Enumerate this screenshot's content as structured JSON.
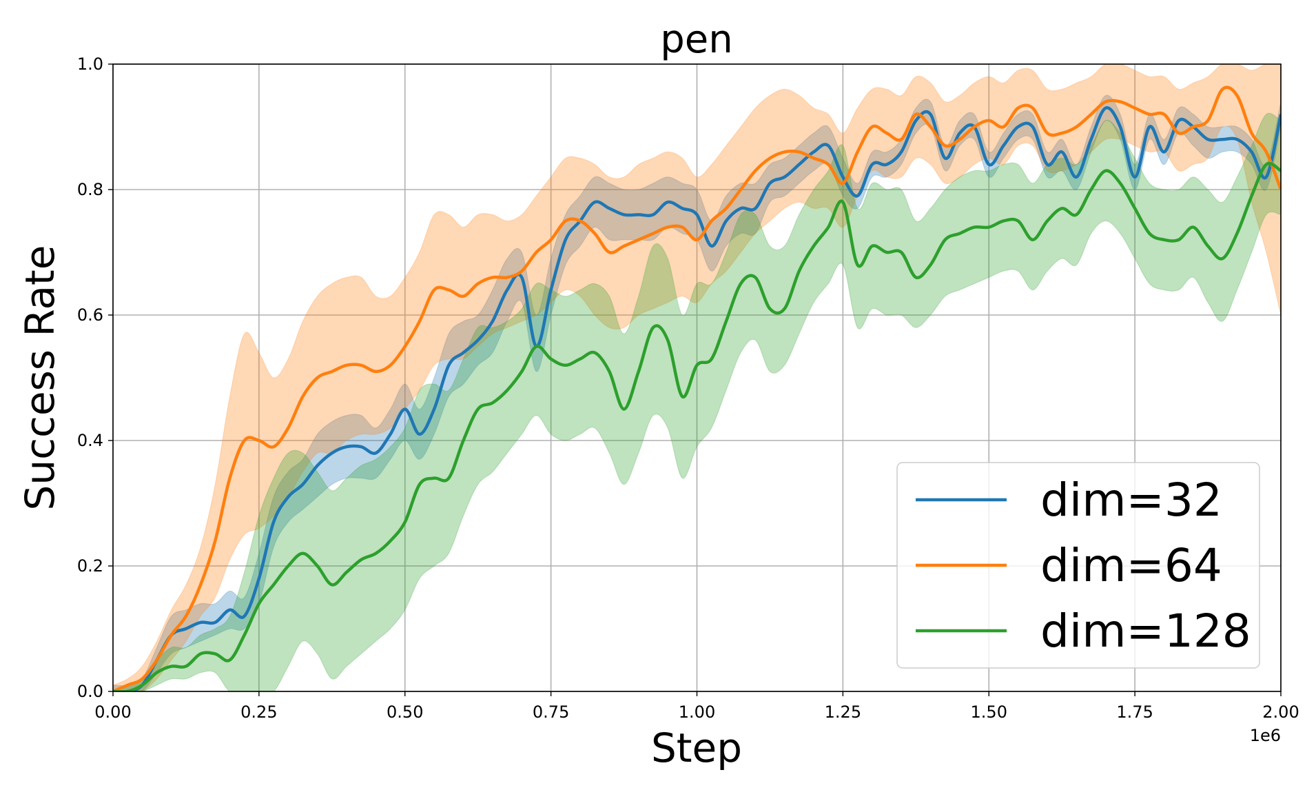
{
  "chart_data": {
    "type": "line",
    "title": "pen",
    "xlabel": "Step",
    "ylabel": "Success Rate",
    "x_offset_label": "1e6",
    "xlim": [
      0,
      2.0
    ],
    "ylim": [
      0,
      1.0
    ],
    "xticks": [
      "0.00",
      "0.25",
      "0.50",
      "0.75",
      "1.00",
      "1.25",
      "1.50",
      "1.75",
      "2.00"
    ],
    "yticks": [
      "0.0",
      "0.2",
      "0.4",
      "0.6",
      "0.8",
      "1.0"
    ],
    "grid": true,
    "legend_position": "lower-right",
    "x": [
      0.0,
      0.025,
      0.05,
      0.075,
      0.1,
      0.125,
      0.15,
      0.175,
      0.2,
      0.225,
      0.25,
      0.275,
      0.3,
      0.325,
      0.35,
      0.375,
      0.4,
      0.425,
      0.45,
      0.475,
      0.5,
      0.525,
      0.55,
      0.575,
      0.6,
      0.625,
      0.65,
      0.675,
      0.7,
      0.725,
      0.75,
      0.775,
      0.8,
      0.825,
      0.85,
      0.875,
      0.9,
      0.925,
      0.95,
      0.975,
      1.0,
      1.025,
      1.05,
      1.075,
      1.1,
      1.125,
      1.15,
      1.175,
      1.2,
      1.225,
      1.25,
      1.275,
      1.3,
      1.325,
      1.35,
      1.375,
      1.4,
      1.425,
      1.45,
      1.475,
      1.5,
      1.525,
      1.55,
      1.575,
      1.6,
      1.625,
      1.65,
      1.675,
      1.7,
      1.725,
      1.75,
      1.775,
      1.8,
      1.825,
      1.85,
      1.875,
      1.9,
      1.925,
      1.95,
      1.975,
      2.0
    ],
    "series": [
      {
        "name": "dim=32",
        "color": "#1f77b4",
        "mean": [
          0.0,
          0.0,
          0.01,
          0.05,
          0.09,
          0.1,
          0.11,
          0.11,
          0.13,
          0.12,
          0.18,
          0.27,
          0.31,
          0.33,
          0.36,
          0.38,
          0.39,
          0.39,
          0.38,
          0.41,
          0.45,
          0.41,
          0.45,
          0.52,
          0.54,
          0.56,
          0.59,
          0.64,
          0.66,
          0.55,
          0.64,
          0.72,
          0.75,
          0.78,
          0.77,
          0.76,
          0.76,
          0.76,
          0.78,
          0.77,
          0.76,
          0.71,
          0.75,
          0.77,
          0.77,
          0.81,
          0.82,
          0.84,
          0.86,
          0.87,
          0.82,
          0.79,
          0.84,
          0.84,
          0.86,
          0.91,
          0.92,
          0.85,
          0.89,
          0.9,
          0.84,
          0.87,
          0.9,
          0.9,
          0.84,
          0.86,
          0.82,
          0.88,
          0.93,
          0.9,
          0.82,
          0.9,
          0.86,
          0.91,
          0.9,
          0.88,
          0.88,
          0.88,
          0.86,
          0.82,
          0.92
        ],
        "lower": [
          0.0,
          0.0,
          0.0,
          0.03,
          0.06,
          0.07,
          0.08,
          0.09,
          0.1,
          0.1,
          0.14,
          0.23,
          0.27,
          0.29,
          0.31,
          0.33,
          0.34,
          0.34,
          0.34,
          0.37,
          0.4,
          0.37,
          0.41,
          0.47,
          0.49,
          0.52,
          0.54,
          0.59,
          0.62,
          0.51,
          0.6,
          0.68,
          0.71,
          0.74,
          0.72,
          0.72,
          0.72,
          0.72,
          0.74,
          0.73,
          0.72,
          0.67,
          0.71,
          0.73,
          0.73,
          0.78,
          0.79,
          0.81,
          0.83,
          0.84,
          0.79,
          0.77,
          0.82,
          0.82,
          0.84,
          0.89,
          0.9,
          0.83,
          0.87,
          0.88,
          0.82,
          0.85,
          0.88,
          0.88,
          0.82,
          0.83,
          0.8,
          0.86,
          0.91,
          0.88,
          0.8,
          0.88,
          0.84,
          0.89,
          0.87,
          0.85,
          0.86,
          0.86,
          0.84,
          0.8,
          0.9
        ],
        "upper": [
          0.01,
          0.01,
          0.02,
          0.07,
          0.12,
          0.13,
          0.14,
          0.14,
          0.16,
          0.15,
          0.22,
          0.31,
          0.35,
          0.37,
          0.41,
          0.43,
          0.44,
          0.44,
          0.42,
          0.45,
          0.49,
          0.45,
          0.5,
          0.57,
          0.59,
          0.6,
          0.64,
          0.69,
          0.7,
          0.6,
          0.69,
          0.76,
          0.79,
          0.82,
          0.81,
          0.8,
          0.8,
          0.81,
          0.82,
          0.81,
          0.8,
          0.75,
          0.79,
          0.81,
          0.81,
          0.84,
          0.85,
          0.87,
          0.89,
          0.9,
          0.85,
          0.81,
          0.86,
          0.86,
          0.88,
          0.93,
          0.94,
          0.87,
          0.91,
          0.92,
          0.86,
          0.89,
          0.92,
          0.92,
          0.86,
          0.88,
          0.84,
          0.9,
          0.95,
          0.92,
          0.84,
          0.92,
          0.88,
          0.93,
          0.92,
          0.9,
          0.9,
          0.9,
          0.88,
          0.84,
          0.94
        ]
      },
      {
        "name": "dim=64",
        "color": "#ff7f0e",
        "mean": [
          0.0,
          0.01,
          0.02,
          0.05,
          0.09,
          0.12,
          0.17,
          0.24,
          0.34,
          0.4,
          0.4,
          0.39,
          0.42,
          0.47,
          0.5,
          0.51,
          0.52,
          0.52,
          0.51,
          0.52,
          0.55,
          0.59,
          0.64,
          0.64,
          0.63,
          0.65,
          0.66,
          0.66,
          0.67,
          0.7,
          0.72,
          0.75,
          0.75,
          0.73,
          0.7,
          0.71,
          0.72,
          0.73,
          0.74,
          0.74,
          0.72,
          0.75,
          0.77,
          0.8,
          0.83,
          0.85,
          0.86,
          0.86,
          0.85,
          0.84,
          0.81,
          0.86,
          0.9,
          0.89,
          0.88,
          0.92,
          0.9,
          0.87,
          0.88,
          0.9,
          0.91,
          0.9,
          0.93,
          0.93,
          0.89,
          0.89,
          0.9,
          0.92,
          0.94,
          0.94,
          0.93,
          0.92,
          0.92,
          0.89,
          0.9,
          0.91,
          0.96,
          0.95,
          0.89,
          0.86,
          0.8
        ],
        "lower": [
          0.0,
          0.0,
          0.0,
          0.02,
          0.05,
          0.08,
          0.12,
          0.15,
          0.21,
          0.25,
          0.26,
          0.28,
          0.31,
          0.35,
          0.38,
          0.38,
          0.4,
          0.41,
          0.41,
          0.42,
          0.45,
          0.48,
          0.52,
          0.53,
          0.53,
          0.55,
          0.57,
          0.58,
          0.59,
          0.6,
          0.62,
          0.64,
          0.63,
          0.6,
          0.58,
          0.58,
          0.6,
          0.61,
          0.62,
          0.63,
          0.62,
          0.65,
          0.67,
          0.7,
          0.73,
          0.75,
          0.77,
          0.78,
          0.77,
          0.77,
          0.74,
          0.79,
          0.83,
          0.82,
          0.82,
          0.85,
          0.84,
          0.81,
          0.82,
          0.84,
          0.85,
          0.84,
          0.87,
          0.87,
          0.83,
          0.83,
          0.84,
          0.86,
          0.88,
          0.88,
          0.87,
          0.86,
          0.86,
          0.83,
          0.84,
          0.85,
          0.9,
          0.88,
          0.78,
          0.7,
          0.6
        ],
        "upper": [
          0.01,
          0.02,
          0.04,
          0.08,
          0.13,
          0.17,
          0.23,
          0.33,
          0.47,
          0.57,
          0.54,
          0.5,
          0.53,
          0.59,
          0.63,
          0.65,
          0.66,
          0.66,
          0.63,
          0.63,
          0.66,
          0.7,
          0.76,
          0.76,
          0.74,
          0.76,
          0.76,
          0.75,
          0.76,
          0.79,
          0.82,
          0.85,
          0.85,
          0.84,
          0.82,
          0.82,
          0.84,
          0.85,
          0.86,
          0.85,
          0.82,
          0.84,
          0.87,
          0.9,
          0.93,
          0.95,
          0.96,
          0.95,
          0.93,
          0.92,
          0.89,
          0.93,
          0.96,
          0.96,
          0.95,
          0.98,
          0.97,
          0.94,
          0.95,
          0.97,
          0.98,
          0.97,
          0.99,
          0.99,
          0.96,
          0.96,
          0.97,
          0.98,
          1.0,
          1.0,
          0.99,
          0.98,
          0.98,
          0.96,
          0.97,
          0.98,
          1.0,
          1.0,
          0.99,
          1.0,
          1.0
        ]
      },
      {
        "name": "dim=128",
        "color": "#2ca02c",
        "mean": [
          0.0,
          0.0,
          0.01,
          0.03,
          0.04,
          0.04,
          0.06,
          0.06,
          0.05,
          0.09,
          0.14,
          0.17,
          0.2,
          0.22,
          0.2,
          0.17,
          0.19,
          0.21,
          0.22,
          0.24,
          0.27,
          0.33,
          0.34,
          0.34,
          0.4,
          0.45,
          0.46,
          0.48,
          0.51,
          0.55,
          0.53,
          0.52,
          0.53,
          0.54,
          0.51,
          0.45,
          0.51,
          0.58,
          0.56,
          0.47,
          0.52,
          0.53,
          0.59,
          0.65,
          0.66,
          0.61,
          0.61,
          0.67,
          0.71,
          0.74,
          0.78,
          0.68,
          0.71,
          0.7,
          0.7,
          0.66,
          0.68,
          0.72,
          0.73,
          0.74,
          0.74,
          0.75,
          0.75,
          0.72,
          0.75,
          0.77,
          0.76,
          0.8,
          0.83,
          0.81,
          0.77,
          0.73,
          0.72,
          0.72,
          0.74,
          0.71,
          0.69,
          0.73,
          0.79,
          0.84,
          0.83
        ],
        "lower": [
          0.0,
          0.0,
          0.0,
          0.01,
          0.02,
          0.02,
          0.03,
          0.03,
          0.0,
          0.0,
          0.0,
          0.0,
          0.04,
          0.08,
          0.06,
          0.02,
          0.04,
          0.06,
          0.08,
          0.1,
          0.13,
          0.18,
          0.2,
          0.22,
          0.28,
          0.33,
          0.35,
          0.38,
          0.41,
          0.44,
          0.41,
          0.4,
          0.41,
          0.42,
          0.38,
          0.33,
          0.38,
          0.44,
          0.42,
          0.34,
          0.39,
          0.42,
          0.48,
          0.54,
          0.56,
          0.51,
          0.52,
          0.57,
          0.62,
          0.65,
          0.68,
          0.58,
          0.61,
          0.6,
          0.6,
          0.58,
          0.6,
          0.63,
          0.64,
          0.65,
          0.66,
          0.67,
          0.67,
          0.64,
          0.67,
          0.69,
          0.68,
          0.73,
          0.75,
          0.73,
          0.69,
          0.65,
          0.64,
          0.64,
          0.66,
          0.62,
          0.59,
          0.64,
          0.7,
          0.76,
          0.76
        ],
        "upper": [
          0.0,
          0.01,
          0.02,
          0.05,
          0.07,
          0.07,
          0.09,
          0.1,
          0.12,
          0.19,
          0.28,
          0.34,
          0.38,
          0.38,
          0.35,
          0.32,
          0.34,
          0.36,
          0.37,
          0.39,
          0.42,
          0.48,
          0.49,
          0.48,
          0.53,
          0.58,
          0.58,
          0.59,
          0.61,
          0.65,
          0.64,
          0.63,
          0.64,
          0.65,
          0.63,
          0.57,
          0.63,
          0.71,
          0.69,
          0.6,
          0.65,
          0.65,
          0.7,
          0.76,
          0.76,
          0.71,
          0.71,
          0.76,
          0.8,
          0.83,
          0.87,
          0.77,
          0.81,
          0.8,
          0.8,
          0.75,
          0.77,
          0.8,
          0.82,
          0.83,
          0.83,
          0.84,
          0.84,
          0.81,
          0.84,
          0.85,
          0.84,
          0.87,
          0.91,
          0.89,
          0.85,
          0.81,
          0.8,
          0.8,
          0.82,
          0.8,
          0.78,
          0.82,
          0.87,
          0.92,
          0.91
        ]
      }
    ]
  }
}
